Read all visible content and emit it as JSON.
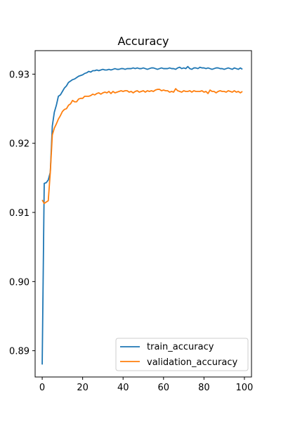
{
  "chart_data": {
    "type": "line",
    "title": "Accuracy",
    "xlabel": "",
    "ylabel": "",
    "xlim": [
      -3.5,
      103.5
    ],
    "ylim": [
      0.8862,
      0.9334
    ],
    "xticks": [
      0,
      20,
      40,
      60,
      80,
      100
    ],
    "yticks": [
      0.89,
      0.9,
      0.91,
      0.92,
      0.93
    ],
    "ytick_format": 2,
    "grid": false,
    "legend_position": "lower-right",
    "series": [
      {
        "name": "train_accuracy",
        "color": "#1f77b4",
        "x": [
          0,
          1,
          2,
          3,
          4,
          5,
          6,
          7,
          8,
          9,
          10,
          11,
          12,
          13,
          14,
          15,
          16,
          17,
          18,
          19,
          20,
          21,
          22,
          23,
          24,
          25,
          26,
          27,
          28,
          29,
          30,
          31,
          32,
          33,
          34,
          35,
          36,
          37,
          38,
          39,
          40,
          41,
          42,
          43,
          44,
          45,
          46,
          47,
          48,
          49,
          50,
          51,
          52,
          53,
          54,
          55,
          56,
          57,
          58,
          59,
          60,
          61,
          62,
          63,
          64,
          65,
          66,
          67,
          68,
          69,
          70,
          71,
          72,
          73,
          74,
          75,
          76,
          77,
          78,
          79,
          80,
          81,
          82,
          83,
          84,
          85,
          86,
          87,
          88,
          89,
          90,
          91,
          92,
          93,
          94,
          95,
          96,
          97,
          98,
          99
        ],
        "y": [
          0.888,
          0.9142,
          0.9143,
          0.9147,
          0.9158,
          0.9225,
          0.9245,
          0.9255,
          0.9268,
          0.927,
          0.9275,
          0.928,
          0.9283,
          0.9288,
          0.929,
          0.9292,
          0.9293,
          0.9295,
          0.9297,
          0.9298,
          0.9299,
          0.9301,
          0.9302,
          0.9304,
          0.9303,
          0.9305,
          0.9305,
          0.9306,
          0.9305,
          0.9306,
          0.9307,
          0.9306,
          0.9306,
          0.9307,
          0.9306,
          0.9307,
          0.9308,
          0.9307,
          0.9307,
          0.9308,
          0.9308,
          0.9307,
          0.9308,
          0.9308,
          0.9308,
          0.9309,
          0.9308,
          0.9309,
          0.9308,
          0.9308,
          0.9309,
          0.9308,
          0.9307,
          0.9308,
          0.9309,
          0.9309,
          0.9308,
          0.9307,
          0.9308,
          0.9309,
          0.9308,
          0.9308,
          0.9308,
          0.9309,
          0.9308,
          0.9308,
          0.9307,
          0.9309,
          0.931,
          0.9308,
          0.9309,
          0.9308,
          0.9311,
          0.9308,
          0.9307,
          0.9309,
          0.9309,
          0.9308,
          0.931,
          0.9309,
          0.9309,
          0.9308,
          0.9309,
          0.9308,
          0.9307,
          0.9308,
          0.9309,
          0.9309,
          0.9308,
          0.9308,
          0.9307,
          0.9308,
          0.9309,
          0.9308,
          0.9307,
          0.9309,
          0.9308,
          0.9307,
          0.9309,
          0.9307
        ]
      },
      {
        "name": "validation_accuracy",
        "color": "#ff7f0e",
        "x": [
          0,
          1,
          2,
          3,
          4,
          5,
          6,
          7,
          8,
          9,
          10,
          11,
          12,
          13,
          14,
          15,
          16,
          17,
          18,
          19,
          20,
          21,
          22,
          23,
          24,
          25,
          26,
          27,
          28,
          29,
          30,
          31,
          32,
          33,
          34,
          35,
          36,
          37,
          38,
          39,
          40,
          41,
          42,
          43,
          44,
          45,
          46,
          47,
          48,
          49,
          50,
          51,
          52,
          53,
          54,
          55,
          56,
          57,
          58,
          59,
          60,
          61,
          62,
          63,
          64,
          65,
          66,
          67,
          68,
          69,
          70,
          71,
          72,
          73,
          74,
          75,
          76,
          77,
          78,
          79,
          80,
          81,
          82,
          83,
          84,
          85,
          86,
          87,
          88,
          89,
          90,
          91,
          92,
          93,
          94,
          95,
          96,
          97,
          98,
          99
        ],
        "y": [
          0.9118,
          0.9113,
          0.9115,
          0.9117,
          0.9158,
          0.9212,
          0.9222,
          0.9228,
          0.9235,
          0.924,
          0.9246,
          0.9249,
          0.925,
          0.9255,
          0.9257,
          0.9262,
          0.926,
          0.926,
          0.9264,
          0.9265,
          0.9265,
          0.9268,
          0.9268,
          0.9268,
          0.9269,
          0.9271,
          0.927,
          0.9272,
          0.9273,
          0.9271,
          0.9273,
          0.9274,
          0.9273,
          0.9275,
          0.9272,
          0.9275,
          0.9273,
          0.9274,
          0.9275,
          0.9276,
          0.9275,
          0.9276,
          0.9276,
          0.9274,
          0.9275,
          0.9273,
          0.9275,
          0.9276,
          0.9274,
          0.9275,
          0.9276,
          0.9274,
          0.9276,
          0.9275,
          0.9276,
          0.9275,
          0.9277,
          0.9278,
          0.9278,
          0.9276,
          0.9277,
          0.9276,
          0.9276,
          0.9274,
          0.9275,
          0.9274,
          0.9279,
          0.9276,
          0.9275,
          0.9274,
          0.9276,
          0.9275,
          0.9275,
          0.9276,
          0.9274,
          0.9276,
          0.9275,
          0.9275,
          0.9275,
          0.9276,
          0.9274,
          0.9275,
          0.9272,
          0.9277,
          0.9275,
          0.9275,
          0.9273,
          0.9275,
          0.9276,
          0.9275,
          0.9275,
          0.9274,
          0.9276,
          0.9275,
          0.9274,
          0.9276,
          0.9274,
          0.9275,
          0.9273,
          0.9275
        ]
      }
    ]
  }
}
